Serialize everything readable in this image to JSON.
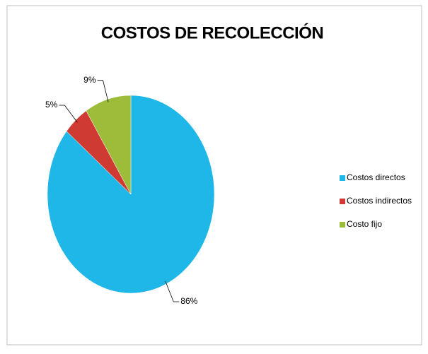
{
  "chart_data": {
    "type": "pie",
    "title": "COSTOS DE RECOLECCIÓN",
    "categories": [
      "Costos directos",
      "Costos indirectos",
      "Costo fijo"
    ],
    "values": [
      86,
      5,
      9
    ],
    "value_labels": [
      "86%",
      "5%",
      "9%"
    ],
    "colors": [
      "#1fb6e8",
      "#cf3b32",
      "#9cbc3a"
    ],
    "legend": "right"
  }
}
